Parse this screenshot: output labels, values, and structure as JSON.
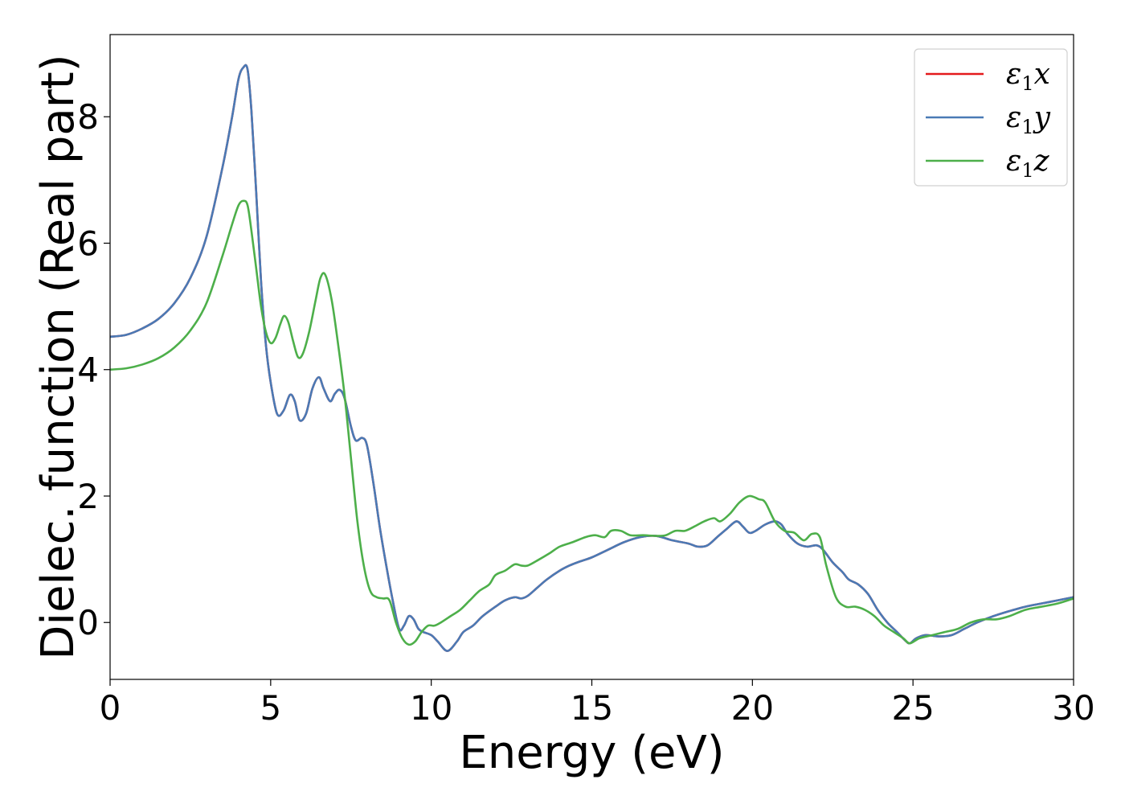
{
  "chart_data": {
    "type": "line",
    "xlabel": "Energy (eV)",
    "ylabel": "Dielec. function (Real part)",
    "xlim": [
      0,
      30
    ],
    "ylim": [
      -0.9,
      9.3
    ],
    "xticks": [
      0,
      5,
      10,
      15,
      20,
      25,
      30
    ],
    "xtick_labels": [
      "0",
      "5",
      "10",
      "15",
      "20",
      "25",
      "30"
    ],
    "yticks": [
      0,
      2,
      4,
      6,
      8
    ],
    "ytick_labels": [
      "0",
      "2",
      "4",
      "6",
      "8"
    ],
    "grid": false,
    "legend_position": "top-right",
    "series": [
      {
        "name": "ε1x",
        "legend": {
          "base": "ε",
          "sub": "1",
          "axis": "x"
        },
        "color": "#e41a1c",
        "x": [
          0,
          0.5,
          1.0,
          1.5,
          2.0,
          2.5,
          3.0,
          3.5,
          3.8,
          4.0,
          4.15,
          4.28,
          4.4,
          4.55,
          4.7,
          4.85,
          5.0,
          5.2,
          5.4,
          5.6,
          5.75,
          5.9,
          6.1,
          6.3,
          6.5,
          6.65,
          6.85,
          7.0,
          7.15,
          7.3,
          7.5,
          7.65,
          7.85,
          8.0,
          8.2,
          8.4,
          8.6,
          8.8,
          9.0,
          9.15,
          9.3,
          9.45,
          9.6,
          9.75,
          10.0,
          10.2,
          10.5,
          10.8,
          11.0,
          11.3,
          11.6,
          12.0,
          12.3,
          12.6,
          12.8,
          13.0,
          13.3,
          13.6,
          14.0,
          14.3,
          14.6,
          15.0,
          15.5,
          16.0,
          16.5,
          17.0,
          17.5,
          18.0,
          18.3,
          18.6,
          18.9,
          19.2,
          19.5,
          19.7,
          19.9,
          20.1,
          20.4,
          20.7,
          20.9,
          21.1,
          21.4,
          21.7,
          22.0,
          22.2,
          22.5,
          22.8,
          23.0,
          23.3,
          23.6,
          23.9,
          24.2,
          24.5,
          24.75,
          24.9,
          25.1,
          25.4,
          25.8,
          26.2,
          26.6,
          27.0,
          27.5,
          28.0,
          28.5,
          29.0,
          29.5,
          30.0
        ],
        "y": [
          4.52,
          4.55,
          4.65,
          4.8,
          5.05,
          5.45,
          6.1,
          7.2,
          8.0,
          8.6,
          8.78,
          8.75,
          8.1,
          6.8,
          5.4,
          4.4,
          3.8,
          3.3,
          3.35,
          3.6,
          3.5,
          3.2,
          3.3,
          3.7,
          3.88,
          3.7,
          3.5,
          3.62,
          3.68,
          3.55,
          3.1,
          2.88,
          2.92,
          2.8,
          2.2,
          1.5,
          0.9,
          0.35,
          -0.1,
          -0.05,
          0.1,
          0.05,
          -0.1,
          -0.15,
          -0.2,
          -0.3,
          -0.45,
          -0.3,
          -0.15,
          -0.05,
          0.1,
          0.25,
          0.35,
          0.4,
          0.38,
          0.42,
          0.55,
          0.68,
          0.82,
          0.9,
          0.96,
          1.03,
          1.15,
          1.27,
          1.35,
          1.37,
          1.3,
          1.25,
          1.2,
          1.22,
          1.35,
          1.48,
          1.6,
          1.52,
          1.42,
          1.45,
          1.55,
          1.6,
          1.55,
          1.4,
          1.25,
          1.2,
          1.22,
          1.15,
          0.95,
          0.8,
          0.68,
          0.6,
          0.45,
          0.2,
          0.0,
          -0.15,
          -0.28,
          -0.33,
          -0.25,
          -0.2,
          -0.22,
          -0.2,
          -0.1,
          0.0,
          0.1,
          0.18,
          0.25,
          0.3,
          0.35,
          0.4
        ]
      },
      {
        "name": "ε1y",
        "legend": {
          "base": "ε",
          "sub": "1",
          "axis": "y"
        },
        "color": "#4a7ab5",
        "x": [
          0,
          0.5,
          1.0,
          1.5,
          2.0,
          2.5,
          3.0,
          3.5,
          3.8,
          4.0,
          4.15,
          4.28,
          4.4,
          4.55,
          4.7,
          4.85,
          5.0,
          5.2,
          5.4,
          5.6,
          5.75,
          5.9,
          6.1,
          6.3,
          6.5,
          6.65,
          6.85,
          7.0,
          7.15,
          7.3,
          7.5,
          7.65,
          7.85,
          8.0,
          8.2,
          8.4,
          8.6,
          8.8,
          9.0,
          9.15,
          9.3,
          9.45,
          9.6,
          9.75,
          10.0,
          10.2,
          10.5,
          10.8,
          11.0,
          11.3,
          11.6,
          12.0,
          12.3,
          12.6,
          12.8,
          13.0,
          13.3,
          13.6,
          14.0,
          14.3,
          14.6,
          15.0,
          15.5,
          16.0,
          16.5,
          17.0,
          17.5,
          18.0,
          18.3,
          18.6,
          18.9,
          19.2,
          19.5,
          19.7,
          19.9,
          20.1,
          20.4,
          20.7,
          20.9,
          21.1,
          21.4,
          21.7,
          22.0,
          22.2,
          22.5,
          22.8,
          23.0,
          23.3,
          23.6,
          23.9,
          24.2,
          24.5,
          24.75,
          24.9,
          25.1,
          25.4,
          25.8,
          26.2,
          26.6,
          27.0,
          27.5,
          28.0,
          28.5,
          29.0,
          29.5,
          30.0
        ],
        "y": [
          4.52,
          4.55,
          4.65,
          4.8,
          5.05,
          5.45,
          6.1,
          7.2,
          8.0,
          8.6,
          8.78,
          8.75,
          8.1,
          6.8,
          5.4,
          4.4,
          3.8,
          3.3,
          3.35,
          3.6,
          3.5,
          3.2,
          3.3,
          3.7,
          3.88,
          3.7,
          3.5,
          3.62,
          3.68,
          3.55,
          3.1,
          2.88,
          2.92,
          2.8,
          2.2,
          1.5,
          0.9,
          0.35,
          -0.1,
          -0.05,
          0.1,
          0.05,
          -0.1,
          -0.15,
          -0.2,
          -0.3,
          -0.45,
          -0.3,
          -0.15,
          -0.05,
          0.1,
          0.25,
          0.35,
          0.4,
          0.38,
          0.42,
          0.55,
          0.68,
          0.82,
          0.9,
          0.96,
          1.03,
          1.15,
          1.27,
          1.35,
          1.37,
          1.3,
          1.25,
          1.2,
          1.22,
          1.35,
          1.48,
          1.6,
          1.52,
          1.42,
          1.45,
          1.55,
          1.6,
          1.55,
          1.4,
          1.25,
          1.2,
          1.22,
          1.15,
          0.95,
          0.8,
          0.68,
          0.6,
          0.45,
          0.2,
          0.0,
          -0.15,
          -0.28,
          -0.33,
          -0.25,
          -0.2,
          -0.22,
          -0.2,
          -0.1,
          0.0,
          0.1,
          0.18,
          0.25,
          0.3,
          0.35,
          0.4
        ]
      },
      {
        "name": "ε1z",
        "legend": {
          "base": "ε",
          "sub": "1",
          "axis": "z"
        },
        "color": "#4daf4a",
        "x": [
          0,
          0.5,
          1.0,
          1.5,
          2.0,
          2.5,
          3.0,
          3.5,
          3.8,
          4.0,
          4.15,
          4.28,
          4.4,
          4.55,
          4.7,
          4.85,
          5.0,
          5.15,
          5.3,
          5.42,
          5.55,
          5.7,
          5.85,
          6.0,
          6.2,
          6.4,
          6.55,
          6.7,
          6.9,
          7.1,
          7.3,
          7.5,
          7.7,
          7.9,
          8.1,
          8.3,
          8.5,
          8.7,
          8.9,
          9.1,
          9.3,
          9.5,
          9.7,
          9.9,
          10.1,
          10.3,
          10.6,
          10.9,
          11.2,
          11.5,
          11.8,
          12.0,
          12.3,
          12.6,
          12.8,
          13.0,
          13.3,
          13.7,
          14.0,
          14.4,
          14.8,
          15.1,
          15.4,
          15.6,
          15.9,
          16.2,
          16.6,
          17.0,
          17.3,
          17.6,
          17.9,
          18.2,
          18.5,
          18.8,
          19.0,
          19.3,
          19.6,
          19.9,
          20.2,
          20.4,
          20.7,
          21.0,
          21.3,
          21.6,
          21.85,
          22.1,
          22.3,
          22.6,
          22.9,
          23.2,
          23.5,
          23.8,
          24.1,
          24.4,
          24.7,
          24.9,
          25.2,
          25.6,
          26.0,
          26.4,
          26.8,
          27.2,
          27.6,
          28.0,
          28.5,
          29.0,
          29.5,
          30.0
        ],
        "y": [
          4.0,
          4.02,
          4.08,
          4.18,
          4.35,
          4.62,
          5.05,
          5.8,
          6.3,
          6.6,
          6.67,
          6.6,
          6.2,
          5.6,
          5.0,
          4.6,
          4.42,
          4.5,
          4.72,
          4.85,
          4.75,
          4.45,
          4.2,
          4.25,
          4.6,
          5.1,
          5.45,
          5.5,
          5.1,
          4.4,
          3.6,
          2.6,
          1.6,
          0.9,
          0.5,
          0.4,
          0.38,
          0.35,
          0.0,
          -0.25,
          -0.35,
          -0.3,
          -0.15,
          -0.05,
          -0.05,
          0.0,
          0.1,
          0.2,
          0.35,
          0.5,
          0.6,
          0.75,
          0.82,
          0.92,
          0.9,
          0.9,
          0.98,
          1.1,
          1.2,
          1.27,
          1.35,
          1.38,
          1.35,
          1.45,
          1.45,
          1.38,
          1.38,
          1.37,
          1.38,
          1.45,
          1.45,
          1.52,
          1.6,
          1.65,
          1.6,
          1.72,
          1.9,
          2.0,
          1.95,
          1.9,
          1.6,
          1.45,
          1.42,
          1.3,
          1.4,
          1.35,
          0.9,
          0.4,
          0.25,
          0.25,
          0.2,
          0.1,
          -0.05,
          -0.15,
          -0.25,
          -0.33,
          -0.25,
          -0.2,
          -0.15,
          -0.1,
          0.0,
          0.05,
          0.05,
          0.1,
          0.2,
          0.25,
          0.3,
          0.38
        ]
      }
    ]
  }
}
